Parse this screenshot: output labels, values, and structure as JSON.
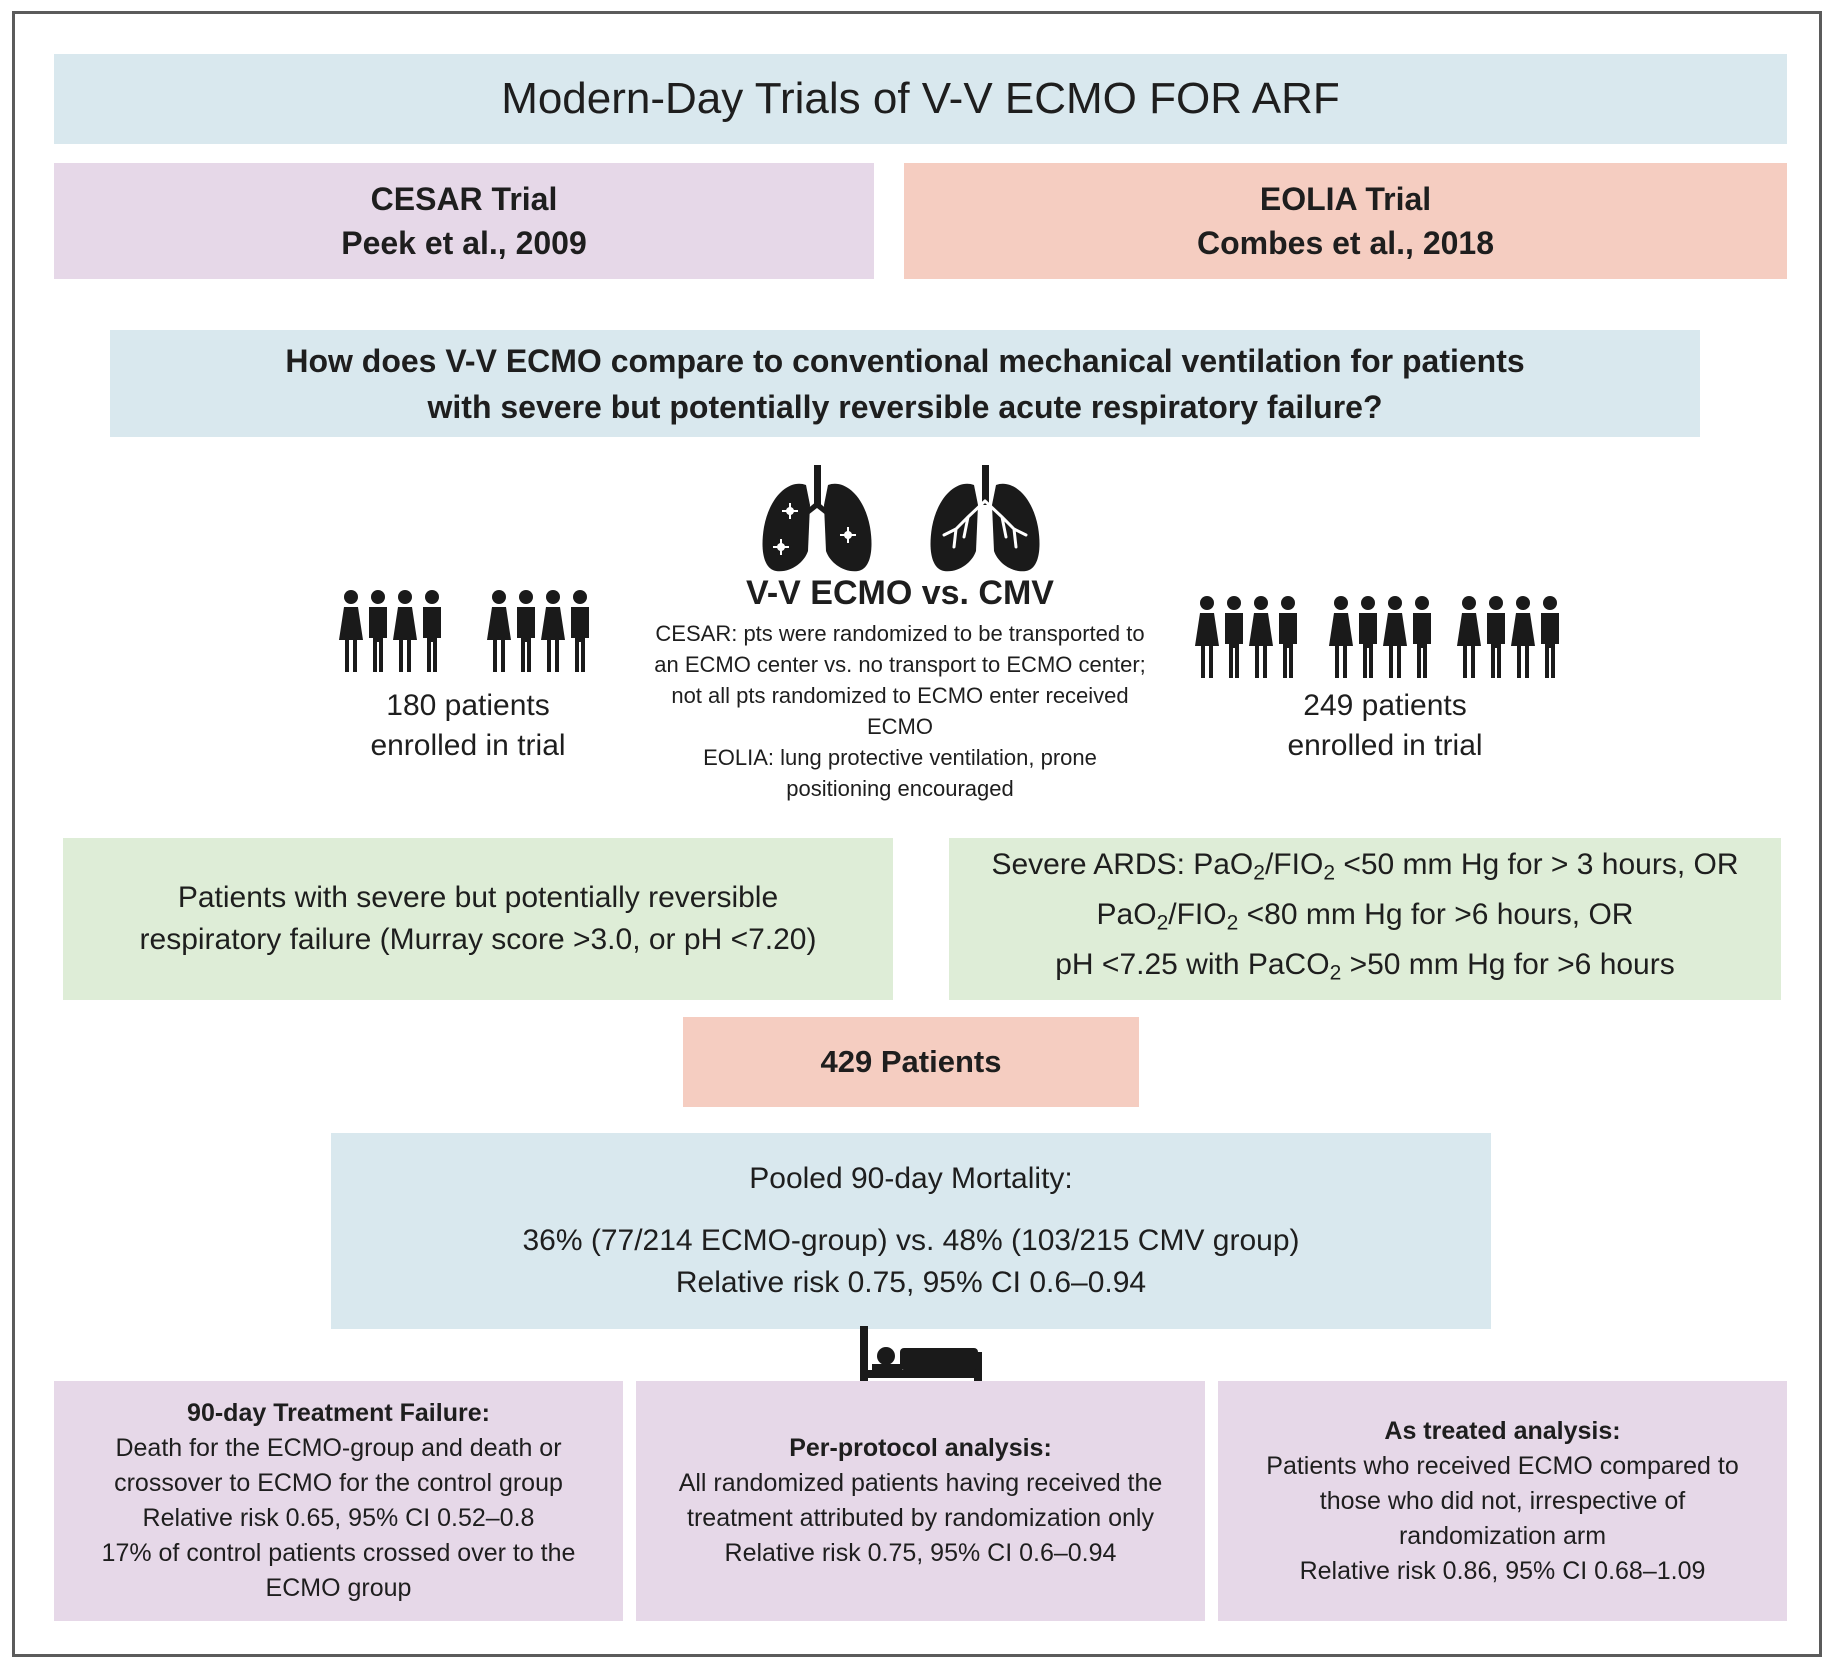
{
  "title": "Modern-Day Trials of V-V ECMO FOR ARF",
  "cesar": {
    "name": "CESAR Trial",
    "citation": "Peek et al., 2009"
  },
  "eolia": {
    "name": "EOLIA Trial",
    "citation": "Combes et al., 2018"
  },
  "question": {
    "line1": "How does V-V ECMO compare to conventional mechanical ventilation for patients",
    "line2": "with severe but potentially reversible acute respiratory failure?"
  },
  "comparison": {
    "title": "V-V ECMO vs. CMV",
    "cesar_line1": "CESAR: pts were randomized to be transported to",
    "cesar_line2": "an ECMO center vs. no transport to ECMO center;",
    "cesar_line3": "not all pts randomized to ECMO enter received",
    "cesar_line4": "ECMO",
    "eolia_line1": "EOLIA: lung protective ventilation, prone",
    "eolia_line2": "positioning encouraged"
  },
  "cesar_enrolled": {
    "line1": "180 patients",
    "line2": "enrolled in trial"
  },
  "eolia_enrolled": {
    "line1": "249 patients",
    "line2": "enrolled in trial"
  },
  "cesar_criteria": {
    "line1": "Patients with severe but potentially reversible",
    "line2": "respiratory failure (Murray score >3.0, or pH <7.20)"
  },
  "eolia_criteria": {
    "l1_a": "Severe ARDS: PaO",
    "l1_sub1": "2",
    "l1_b": "/FIO",
    "l1_sub2": "2",
    "l1_c": " <50 mm Hg for > 3 hours, OR",
    "l2_a": "PaO",
    "l2_sub1": "2",
    "l2_b": "/FIO",
    "l2_sub2": "2",
    "l2_c": " <80 mm Hg for >6 hours, OR",
    "l3_a": "pH <7.25 with PaCO",
    "l3_sub": "2",
    "l3_b": " >50 mm Hg for >6 hours"
  },
  "total": "429 Patients",
  "pooled": {
    "heading": "Pooled 90-day Mortality:",
    "line1": "36% (77/214 ECMO-group) vs. 48% (103/215 CMV group)",
    "line2": "Relative risk 0.75, 95% CI 0.6–0.94"
  },
  "treatment_failure": {
    "heading": "90-day Treatment Failure:",
    "line1": "Death for the ECMO-group and death or",
    "line2": "crossover to ECMO for the control group",
    "line3": "Relative risk 0.65, 95% CI 0.52–0.8",
    "line4": "17% of control patients crossed over to the",
    "line5": "ECMO group"
  },
  "per_protocol": {
    "heading": "Per-protocol analysis:",
    "line1": "All randomized patients having received the",
    "line2": "treatment attributed by randomization only",
    "line3": "Relative risk 0.75, 95% CI 0.6–0.94"
  },
  "as_treated": {
    "heading": "As treated analysis:",
    "line1": "Patients who received ECMO compared to",
    "line2": "those who did not, irrespective of",
    "line3": "randomization arm",
    "line4": "Relative risk 0.86, 95% CI 0.68–1.09"
  },
  "colors": {
    "blue_box": "#d9e8ee",
    "purple_box": "#e6d8e8",
    "salmon_box": "#f5cdc1",
    "green_box": "#deedd7",
    "icon": "#1a1a1a"
  },
  "icons": [
    "people-group-icon",
    "diseased-lung-icon",
    "healthy-lung-icon",
    "hospital-bed-icon"
  ]
}
